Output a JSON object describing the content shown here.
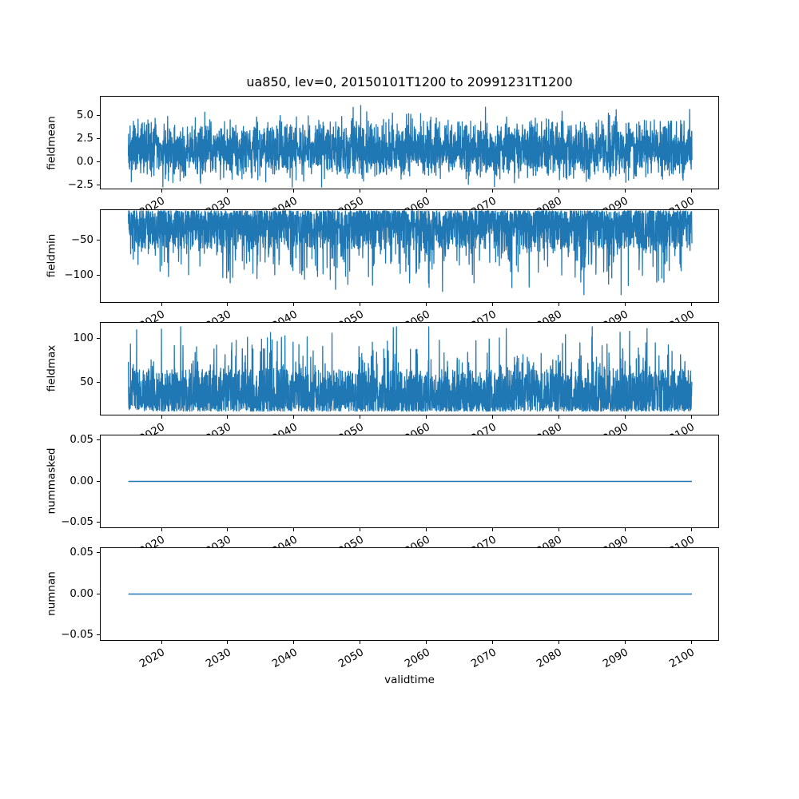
{
  "chart_data": {
    "type": "line",
    "title": "ua850, lev=0, 20150101T1200 to 20991231T1200",
    "xlabel": "validtime",
    "line_color": "#1f77b4",
    "n_points": 3200,
    "legend": "none",
    "grid": false,
    "x_axis": {
      "xlim": [
        2010.7,
        2104.2
      ],
      "data_range": [
        2015.0,
        2100.1
      ],
      "ticks": [
        {
          "v": 2020,
          "label": "2020"
        },
        {
          "v": 2030,
          "label": "2030"
        },
        {
          "v": 2040,
          "label": "2040"
        },
        {
          "v": 2050,
          "label": "2050"
        },
        {
          "v": 2060,
          "label": "2060"
        },
        {
          "v": 2070,
          "label": "2070"
        },
        {
          "v": 2080,
          "label": "2080"
        },
        {
          "v": 2090,
          "label": "2090"
        },
        {
          "v": 2100,
          "label": "2100"
        }
      ],
      "tick_rotation_deg": 30
    },
    "subplots": [
      {
        "ylabel": "fieldmean",
        "ylim": [
          -2.95,
          7.07
        ],
        "yticks": [
          {
            "v": 5.0,
            "label": "5.0"
          },
          {
            "v": 2.5,
            "label": "2.5"
          },
          {
            "v": 0.0,
            "label": "0.0"
          },
          {
            "v": -2.5,
            "label": "−2.5"
          }
        ],
        "series_summary": {
          "mean": 1.3,
          "dense_band": [
            -1.0,
            3.6
          ],
          "min": -2.7,
          "max": 6.55
        },
        "gen": {
          "kind": "gauss",
          "mean": 1.3,
          "std": 1.45,
          "clamp": [
            -2.7,
            6.55
          ],
          "seed": 20150101
        }
      },
      {
        "ylabel": "fieldmin",
        "ylim": [
          -139.5,
          -4.8
        ],
        "yticks": [
          {
            "v": -50,
            "label": "−50"
          },
          {
            "v": -100,
            "label": "−100"
          }
        ],
        "series_summary": {
          "dense_band": [
            -62,
            -7
          ],
          "min": -135,
          "max": -6.8
        },
        "gen": {
          "kind": "spiky",
          "dir": -1,
          "base": -7,
          "band": 55,
          "band_pow": 1.8,
          "spike_prob": 0.25,
          "spike_amp": 75,
          "spike_pow": 2.5,
          "clamp": [
            -135,
            -6.8
          ],
          "seed": 99
        }
      },
      {
        "ylabel": "fieldmax",
        "ylim": [
          12,
          119.5
        ],
        "yticks": [
          {
            "v": 100,
            "label": "100"
          },
          {
            "v": 50,
            "label": "50"
          }
        ],
        "series_summary": {
          "dense_band": [
            17,
            65
          ],
          "min": 16.5,
          "max": 114
        },
        "gen": {
          "kind": "spiky",
          "dir": 1,
          "base": 17,
          "band": 48,
          "band_pow": 1.8,
          "spike_prob": 0.22,
          "spike_amp": 60,
          "spike_pow": 2.5,
          "clamp": [
            16.5,
            114
          ],
          "seed": 7
        }
      },
      {
        "ylabel": "nummasked",
        "ylim": [
          -0.057,
          0.057
        ],
        "yticks": [
          {
            "v": 0.05,
            "label": "0.05"
          },
          {
            "v": 0.0,
            "label": "0.00"
          },
          {
            "v": -0.05,
            "label": "−0.05"
          }
        ],
        "series_summary": {
          "constant": 0.0
        },
        "gen": {
          "kind": "constant",
          "value": 0.0
        }
      },
      {
        "ylabel": "numnan",
        "ylim": [
          -0.057,
          0.057
        ],
        "yticks": [
          {
            "v": 0.05,
            "label": "0.05"
          },
          {
            "v": 0.0,
            "label": "0.00"
          },
          {
            "v": -0.05,
            "label": "−0.05"
          }
        ],
        "series_summary": {
          "constant": 0.0
        },
        "gen": {
          "kind": "constant",
          "value": 0.0
        }
      }
    ]
  }
}
